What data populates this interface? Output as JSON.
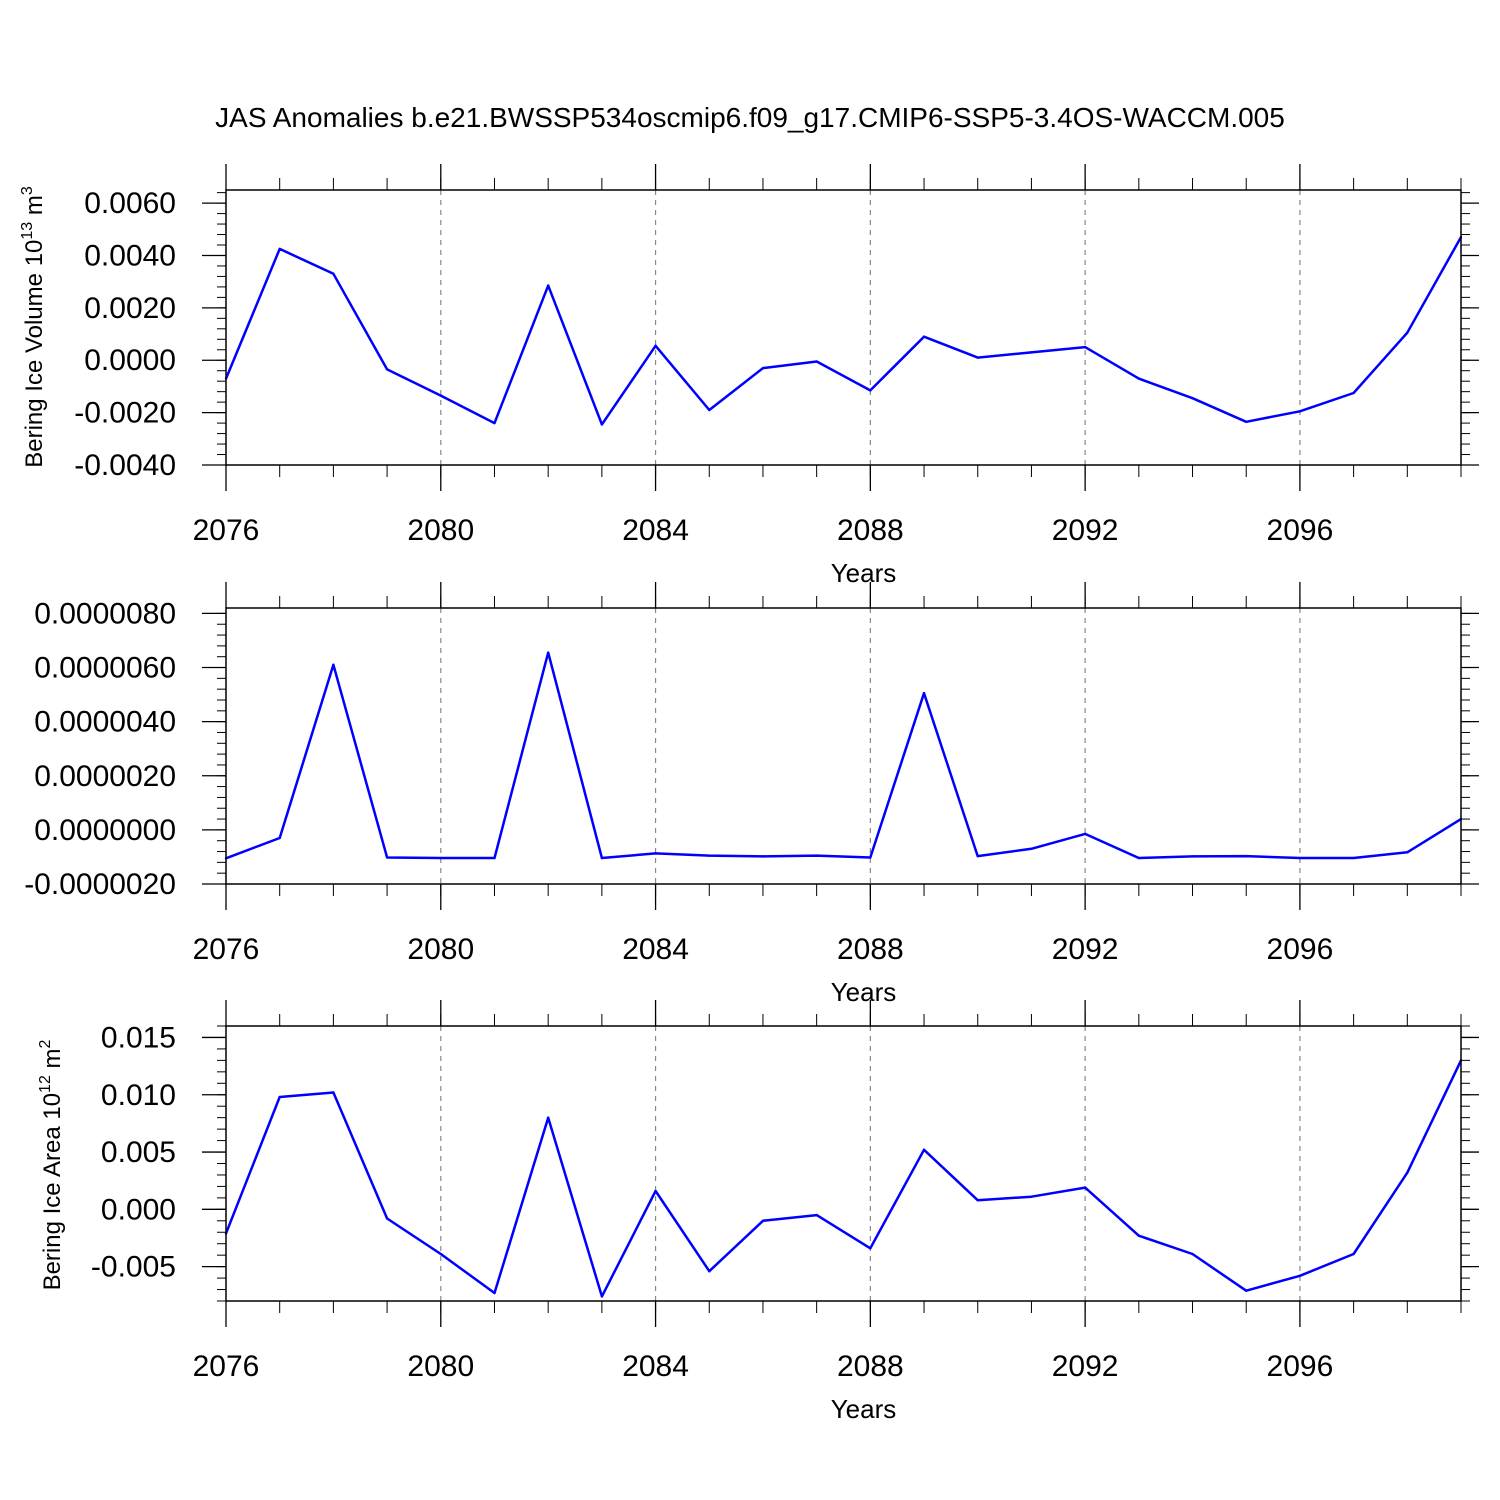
{
  "title": "JAS Anomalies b.e21.BWSSP534oscmip6.f09_g17.CMIP6-SSP5-3.4OS-WACCM.005",
  "line_color": "#0000ff",
  "chart_data": [
    {
      "type": "line",
      "name": "volume",
      "ylabel_main": "Bering Ice Volume 10",
      "ylabel_exp": "13",
      "ylabel_unit": " m",
      "ylabel_unit_exp": "3",
      "xlabel": "Years",
      "xlim": [
        2076,
        2099
      ],
      "ylim": [
        -0.004,
        0.0065
      ],
      "yticks": [
        -0.004,
        -0.002,
        0.0,
        0.002,
        0.004,
        0.006
      ],
      "ytick_labels": [
        "-0.0040",
        "-0.0020",
        "0.0000",
        "0.0020",
        "0.0040",
        "0.0060"
      ],
      "yminor_step": 0.0004,
      "xticks": [
        2076,
        2080,
        2084,
        2088,
        2092,
        2096
      ],
      "xtick_labels": [
        "2076",
        "2080",
        "2084",
        "2088",
        "2092",
        "2096"
      ],
      "gridlines_x": [
        2080,
        2084,
        2088,
        2092,
        2096
      ],
      "x": [
        2076,
        2077,
        2078,
        2079,
        2080,
        2081,
        2082,
        2083,
        2084,
        2085,
        2086,
        2087,
        2088,
        2089,
        2090,
        2091,
        2092,
        2093,
        2094,
        2095,
        2096,
        2097,
        2098,
        2099
      ],
      "values": [
        -0.0007,
        0.00425,
        0.0033,
        -0.00035,
        -0.00135,
        -0.0024,
        0.00285,
        -0.00245,
        0.00055,
        -0.0019,
        -0.0003,
        -5e-05,
        -0.00115,
        0.0009,
        0.0001,
        0.0003,
        0.0005,
        -0.0007,
        -0.00145,
        -0.00235,
        -0.00195,
        -0.00125,
        0.00105,
        0.0047
      ]
    },
    {
      "type": "line",
      "name": "snow",
      "ylabel_main": "",
      "ylabel_exp": "",
      "ylabel_unit": "",
      "ylabel_unit_exp": "",
      "xlabel": "Years",
      "xlim": [
        2076,
        2099
      ],
      "ylim": [
        -2e-06,
        8.2e-06
      ],
      "yticks": [
        -2e-06,
        0.0,
        2e-06,
        4e-06,
        6e-06,
        8e-06
      ],
      "ytick_labels": [
        "-0.0000020",
        "0.0000000",
        "0.0000020",
        "0.0000040",
        "0.0000060",
        "0.0000080"
      ],
      "yminor_step": 4e-07,
      "xticks": [
        2076,
        2080,
        2084,
        2088,
        2092,
        2096
      ],
      "xtick_labels": [
        "2076",
        "2080",
        "2084",
        "2088",
        "2092",
        "2096"
      ],
      "gridlines_x": [
        2080,
        2084,
        2088,
        2092,
        2096
      ],
      "x": [
        2076,
        2077,
        2078,
        2079,
        2080,
        2081,
        2082,
        2083,
        2084,
        2085,
        2086,
        2087,
        2088,
        2089,
        2090,
        2091,
        2092,
        2093,
        2094,
        2095,
        2096,
        2097,
        2098,
        2099
      ],
      "values": [
        -1.05e-06,
        -3e-07,
        6.1e-06,
        -1.02e-06,
        -1.04e-06,
        -1.04e-06,
        6.55e-06,
        -1.04e-06,
        -8.7e-07,
        -9.5e-07,
        -9.8e-07,
        -9.5e-07,
        -1.02e-06,
        5.05e-06,
        -9.7e-07,
        -7e-07,
        -1.5e-07,
        -1.04e-06,
        -9.8e-07,
        -9.7e-07,
        -1.04e-06,
        -1.04e-06,
        -8.3e-07,
        4e-07
      ]
    },
    {
      "type": "line",
      "name": "area",
      "ylabel_main": "Bering Ice Area 10",
      "ylabel_exp": "12",
      "ylabel_unit": " m",
      "ylabel_unit_exp": "2",
      "xlabel": "Years",
      "xlim": [
        2076,
        2099
      ],
      "ylim": [
        -0.008,
        0.016
      ],
      "yticks": [
        -0.005,
        0.0,
        0.005,
        0.01,
        0.015
      ],
      "ytick_labels": [
        "-0.005",
        "0.000",
        "0.005",
        "0.010",
        "0.015"
      ],
      "yminor_step": 0.001,
      "xticks": [
        2076,
        2080,
        2084,
        2088,
        2092,
        2096
      ],
      "xtick_labels": [
        "2076",
        "2080",
        "2084",
        "2088",
        "2092",
        "2096"
      ],
      "gridlines_x": [
        2080,
        2084,
        2088,
        2092,
        2096
      ],
      "x": [
        2076,
        2077,
        2078,
        2079,
        2080,
        2081,
        2082,
        2083,
        2084,
        2085,
        2086,
        2087,
        2088,
        2089,
        2090,
        2091,
        2092,
        2093,
        2094,
        2095,
        2096,
        2097,
        2098,
        2099
      ],
      "values": [
        -0.0021,
        0.0098,
        0.0102,
        -0.0008,
        -0.0039,
        -0.0073,
        0.008,
        -0.0076,
        0.0016,
        -0.0054,
        -0.001,
        -0.0005,
        -0.0034,
        0.0052,
        0.0008,
        0.0011,
        0.0019,
        -0.0023,
        -0.0039,
        -0.0071,
        -0.0058,
        -0.0039,
        0.0032,
        0.013
      ]
    }
  ]
}
